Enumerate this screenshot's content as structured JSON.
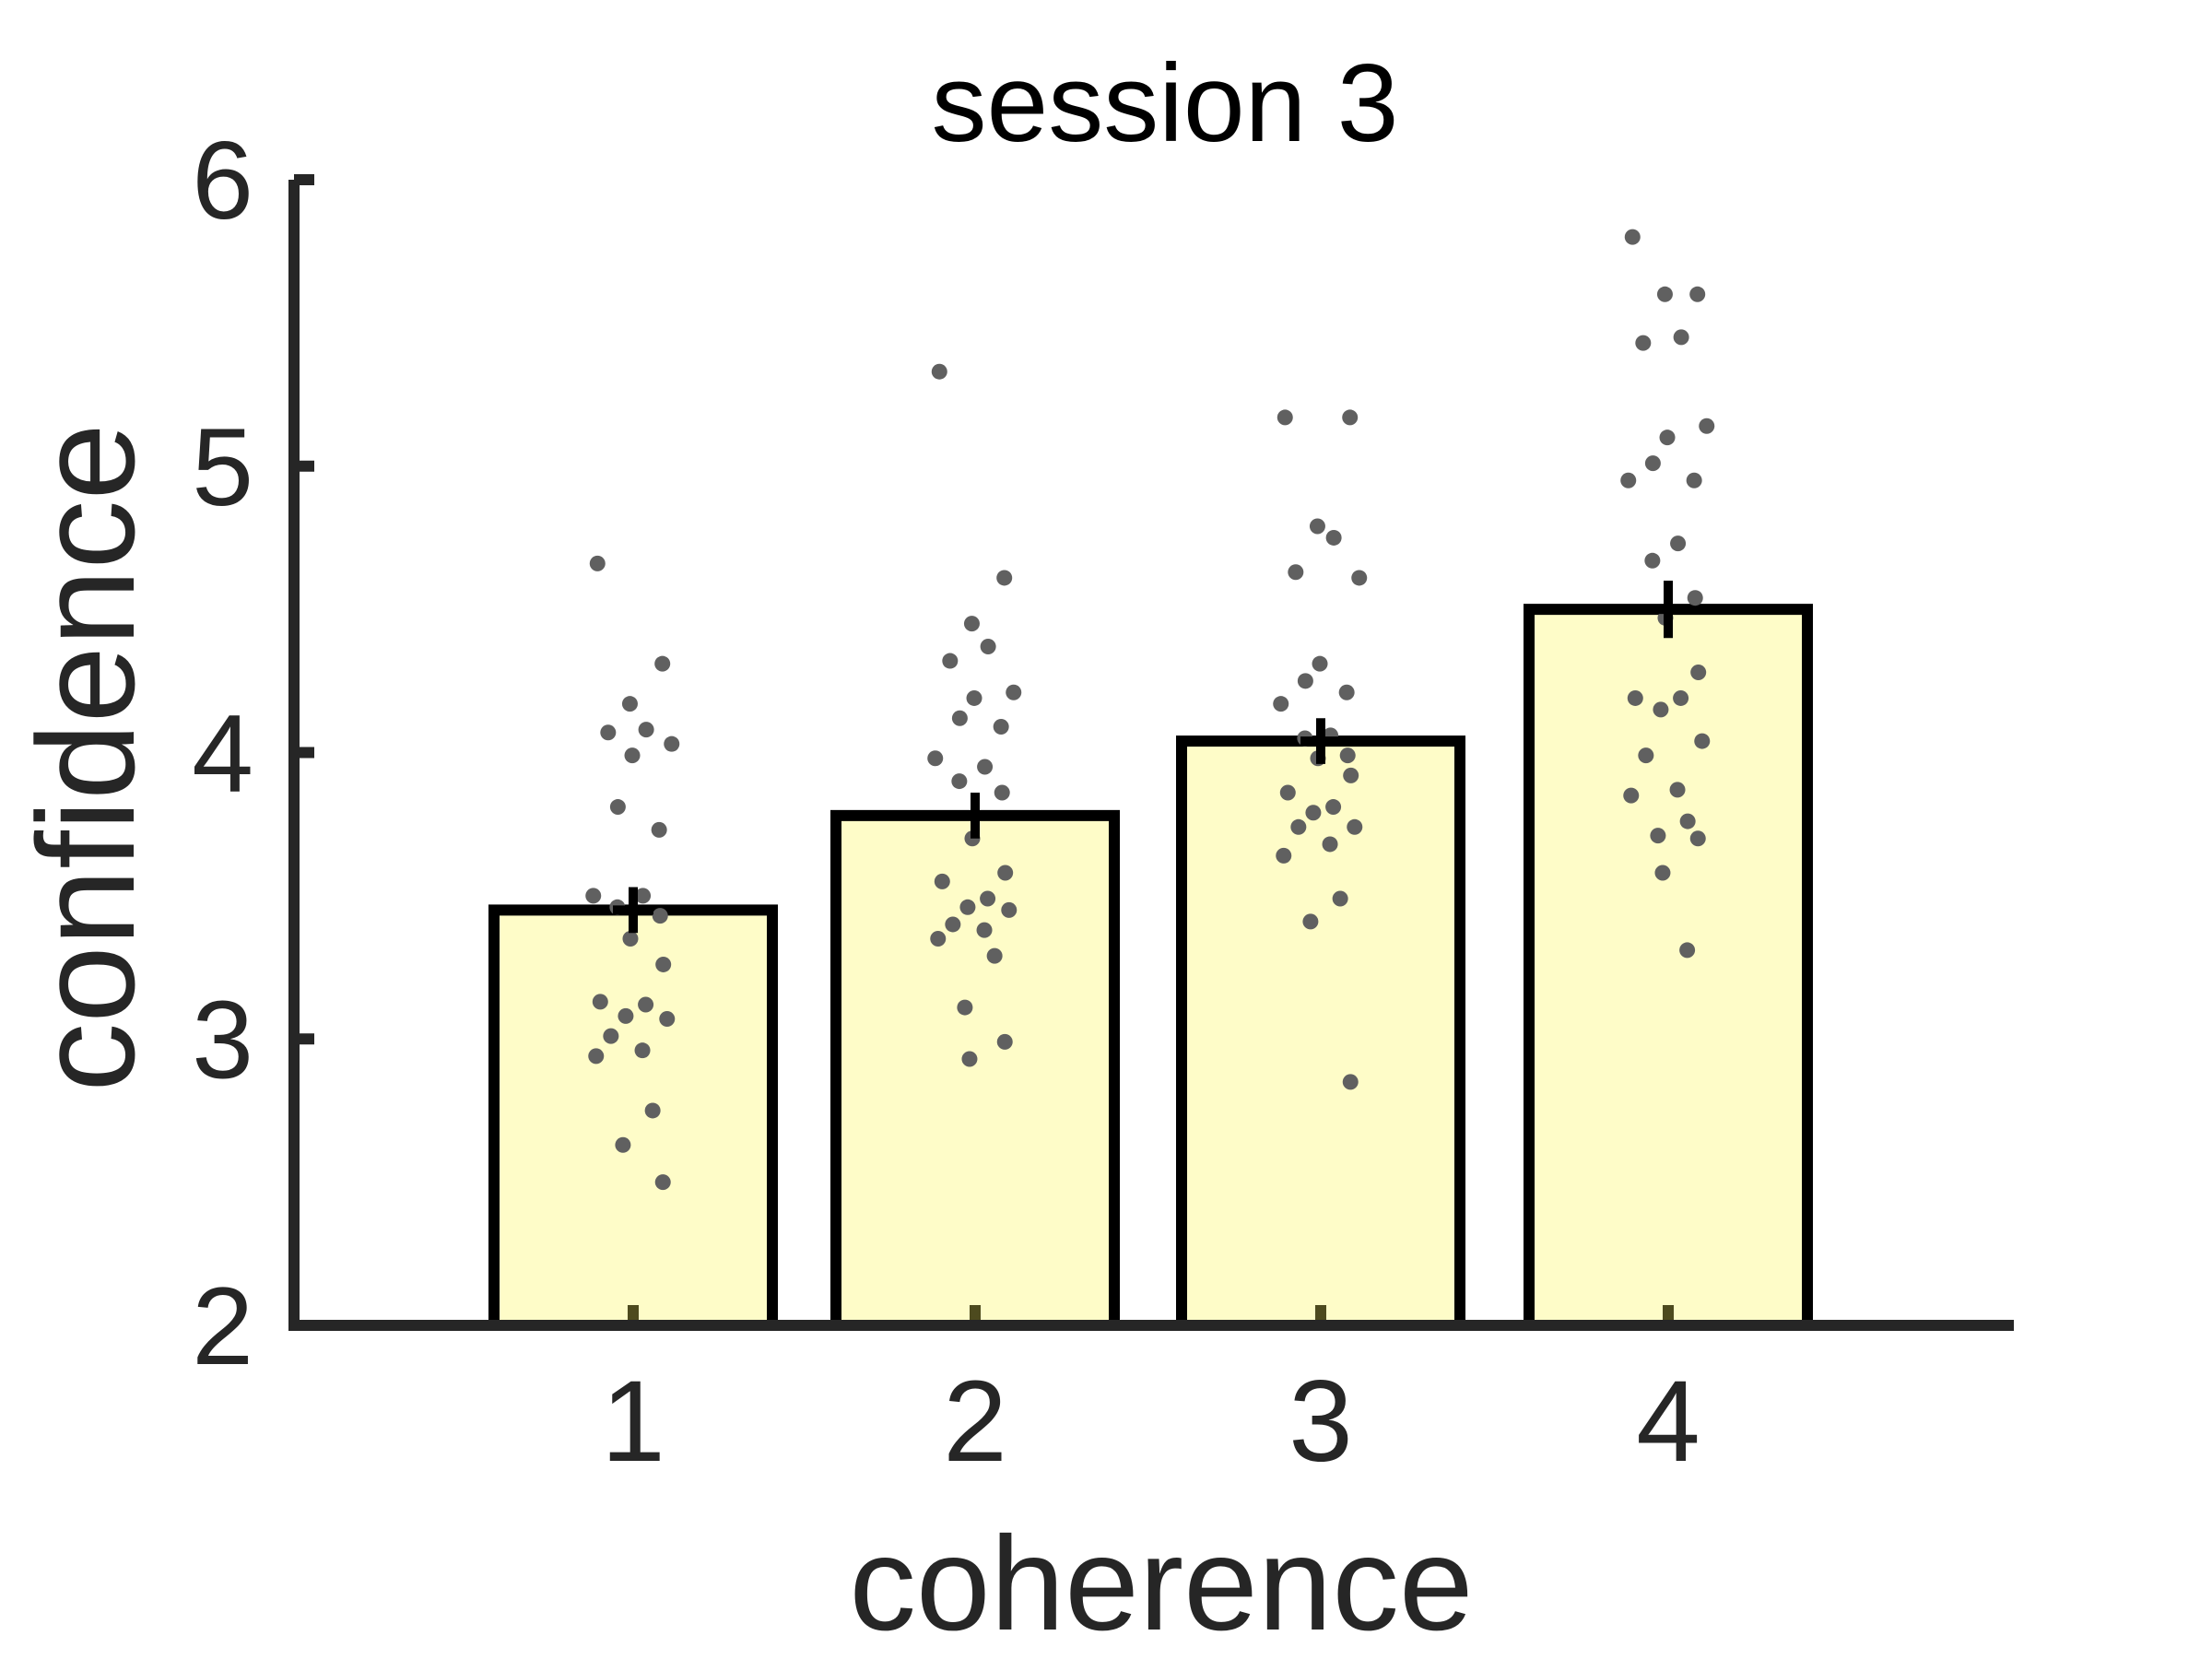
{
  "chart_data": {
    "type": "bar",
    "title": "session 3",
    "xlabel": "coherence",
    "ylabel": "confidence",
    "categories": [
      "1",
      "2",
      "3",
      "4"
    ],
    "ylim": [
      2,
      6
    ],
    "yticks": [
      "2",
      "3",
      "4",
      "5",
      "6"
    ],
    "grid": false,
    "legend": "none",
    "series": [
      {
        "values": [
          3.45,
          3.78,
          4.04,
          4.5
        ],
        "errors": [
          0.08,
          0.08,
          0.08,
          0.1
        ],
        "points": [
          [
            4.66,
            4.31,
            4.17,
            4.08,
            4.07,
            4.03,
            3.99,
            3.81,
            3.73,
            3.5,
            3.5,
            3.46,
            3.43,
            3.35,
            3.26,
            3.13,
            3.12,
            3.08,
            3.07,
            3.01,
            2.96,
            2.94,
            2.75,
            2.63,
            2.5
          ],
          [
            5.33,
            4.61,
            4.45,
            4.37,
            4.32,
            4.21,
            4.19,
            4.12,
            4.09,
            3.98,
            3.95,
            3.9,
            3.86,
            3.7,
            3.58,
            3.55,
            3.49,
            3.46,
            3.45,
            3.4,
            3.38,
            3.35,
            3.29,
            3.11,
            2.99,
            2.93
          ],
          [
            5.17,
            5.17,
            4.79,
            4.75,
            4.63,
            4.61,
            4.31,
            4.25,
            4.21,
            4.17,
            4.06,
            4.05,
            3.99,
            3.98,
            3.92,
            3.86,
            3.81,
            3.79,
            3.74,
            3.74,
            3.68,
            3.64,
            3.49,
            3.41,
            2.85
          ],
          [
            5.8,
            5.6,
            5.6,
            5.45,
            5.43,
            5.14,
            5.1,
            5.01,
            4.95,
            4.95,
            4.73,
            4.67,
            4.54,
            4.47,
            4.28,
            4.19,
            4.19,
            4.15,
            4.04,
            3.99,
            3.87,
            3.85,
            3.76,
            3.71,
            3.7,
            3.58,
            3.31
          ]
        ]
      }
    ],
    "colors": {
      "bar_fill": "#fefcc8",
      "bar_edge": "#000000",
      "axis": "#262626",
      "points": "#606060",
      "error": "#000000"
    }
  }
}
